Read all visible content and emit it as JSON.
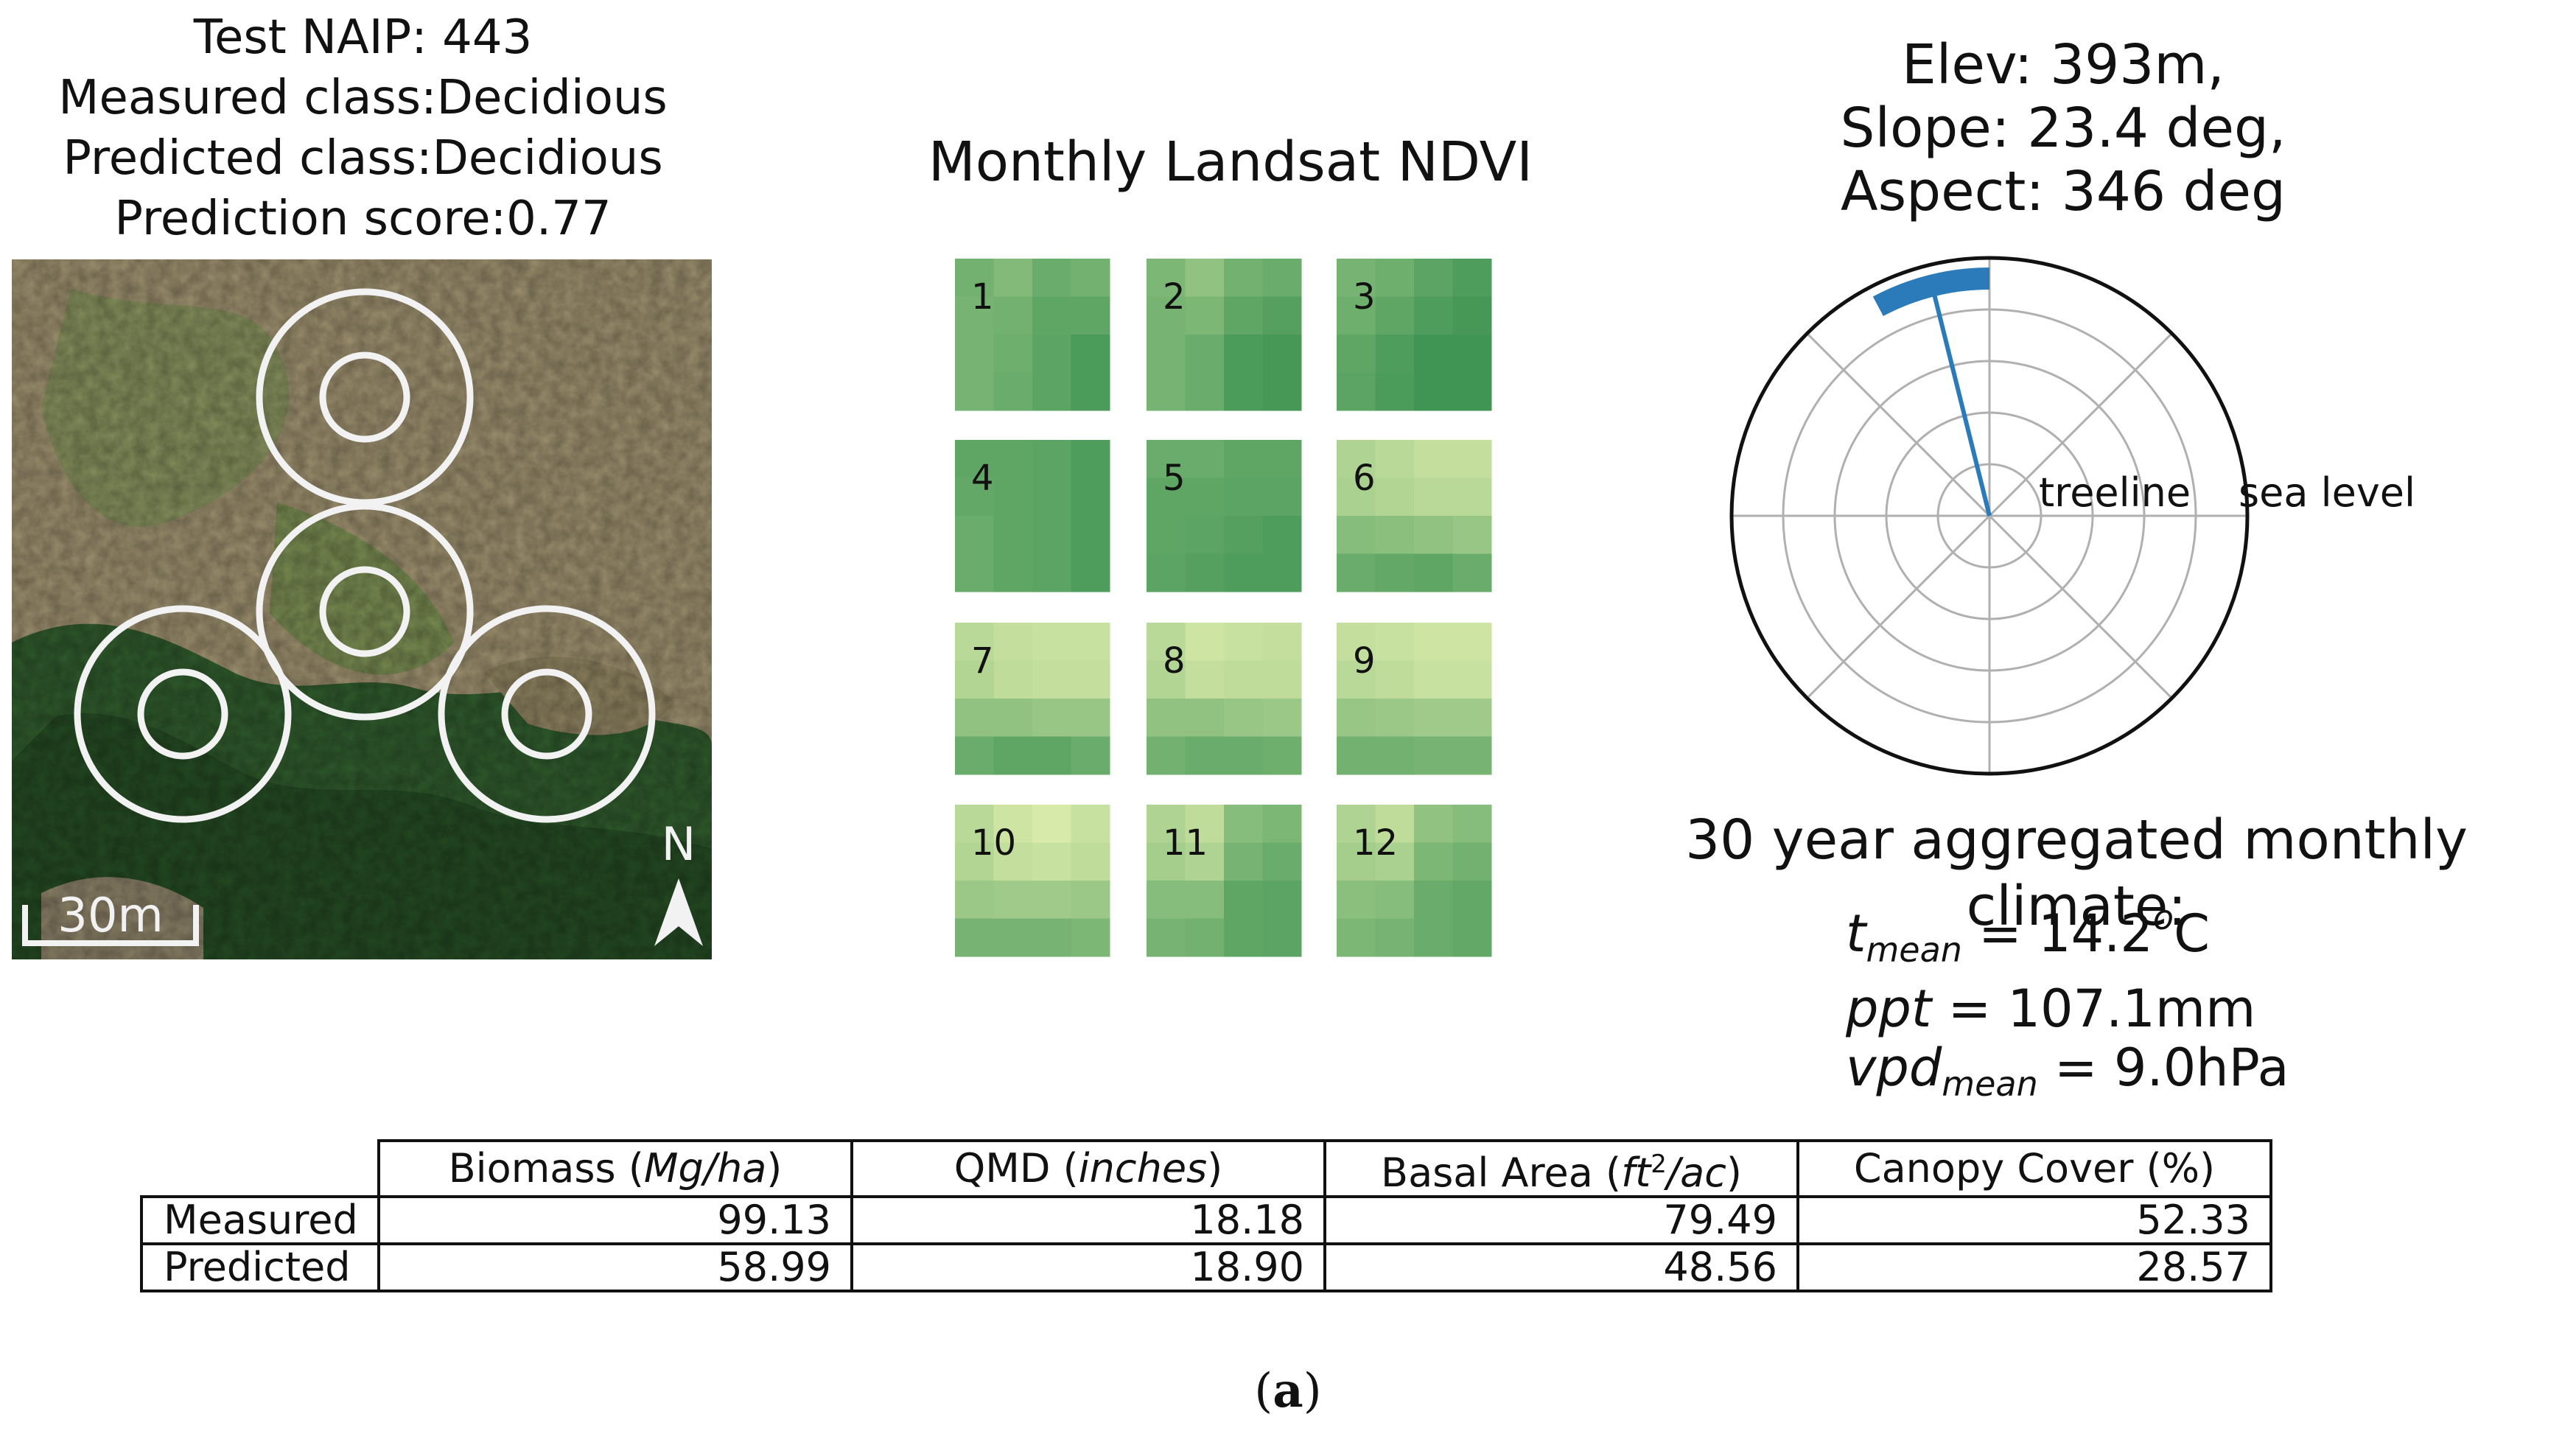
{
  "naip_panel": {
    "title_lines": [
      "Test NAIP: 443",
      "Measured class:Decidious",
      "Predicted class:Decidious",
      "Prediction score:0.77"
    ],
    "scale_label": "30m",
    "north_label": "N"
  },
  "ndvi_panel": {
    "title": "Monthly Landsat NDVI",
    "tiles": [
      {
        "label": "1",
        "cells": [
          0.4,
          0.48,
          0.35,
          0.4,
          0.42,
          0.4,
          0.3,
          0.3,
          0.42,
          0.38,
          0.28,
          0.2,
          0.42,
          0.35,
          0.28,
          0.2
        ]
      },
      {
        "label": "2",
        "cells": [
          0.45,
          0.55,
          0.4,
          0.35,
          0.42,
          0.45,
          0.3,
          0.25,
          0.42,
          0.35,
          0.2,
          0.18,
          0.42,
          0.35,
          0.2,
          0.18
        ]
      },
      {
        "label": "3",
        "cells": [
          0.42,
          0.38,
          0.28,
          0.22,
          0.38,
          0.3,
          0.22,
          0.18,
          0.3,
          0.22,
          0.15,
          0.15,
          0.28,
          0.2,
          0.15,
          0.15
        ]
      },
      {
        "label": "4",
        "cells": [
          0.3,
          0.3,
          0.28,
          0.22,
          0.32,
          0.3,
          0.28,
          0.22,
          0.35,
          0.3,
          0.28,
          0.22,
          0.35,
          0.3,
          0.28,
          0.22
        ]
      },
      {
        "label": "5",
        "cells": [
          0.35,
          0.35,
          0.3,
          0.3,
          0.3,
          0.3,
          0.28,
          0.28,
          0.3,
          0.28,
          0.25,
          0.22,
          0.28,
          0.25,
          0.22,
          0.22
        ]
      },
      {
        "label": "6",
        "cells": [
          0.7,
          0.75,
          0.8,
          0.8,
          0.68,
          0.72,
          0.75,
          0.75,
          0.5,
          0.52,
          0.55,
          0.58,
          0.35,
          0.32,
          0.3,
          0.35
        ]
      },
      {
        "label": "7",
        "cells": [
          0.75,
          0.8,
          0.82,
          0.82,
          0.72,
          0.78,
          0.8,
          0.8,
          0.55,
          0.55,
          0.58,
          0.58,
          0.35,
          0.3,
          0.3,
          0.35
        ]
      },
      {
        "label": "8",
        "cells": [
          0.75,
          0.85,
          0.82,
          0.8,
          0.72,
          0.8,
          0.78,
          0.78,
          0.55,
          0.55,
          0.58,
          0.6,
          0.4,
          0.35,
          0.35,
          0.38
        ]
      },
      {
        "label": "9",
        "cells": [
          0.8,
          0.82,
          0.85,
          0.85,
          0.75,
          0.78,
          0.82,
          0.82,
          0.58,
          0.6,
          0.62,
          0.62,
          0.4,
          0.4,
          0.42,
          0.42
        ]
      },
      {
        "label": "10",
        "cells": [
          0.75,
          0.85,
          0.9,
          0.82,
          0.72,
          0.8,
          0.82,
          0.78,
          0.6,
          0.62,
          0.62,
          0.6,
          0.42,
          0.42,
          0.42,
          0.45
        ]
      },
      {
        "label": "11",
        "cells": [
          0.7,
          0.78,
          0.5,
          0.45,
          0.65,
          0.7,
          0.42,
          0.35,
          0.5,
          0.5,
          0.3,
          0.28,
          0.42,
          0.4,
          0.3,
          0.28
        ]
      },
      {
        "label": "12",
        "cells": [
          0.7,
          0.78,
          0.55,
          0.5,
          0.65,
          0.68,
          0.45,
          0.4,
          0.52,
          0.5,
          0.35,
          0.32,
          0.45,
          0.42,
          0.35,
          0.32
        ]
      }
    ]
  },
  "topo_panel": {
    "title_lines": [
      "Elev: 393m,",
      "Slope: 23.4 deg,",
      "Aspect: 346 deg"
    ],
    "radial_labels": [
      "treeline",
      "sea level"
    ],
    "aspect_deg": 346,
    "line_color": "#2b7bba"
  },
  "climate_panel": {
    "title": "30 year aggregated monthly climate:",
    "tmean_sym": "t",
    "tmean_sub": "mean",
    "tmean_val": " = 14.2",
    "tmean_sup": "o",
    "tmean_unit": "C",
    "ppt_sym": "ppt",
    "ppt_val": " = 107.1mm",
    "vpd_sym": "vpd",
    "vpd_sub": "mean",
    "vpd_val": " = 9.0hPa"
  },
  "table": {
    "headers": [
      {
        "name": "Biomass",
        "unit": "Mg/ha"
      },
      {
        "name": "QMD",
        "unit": "inches"
      },
      {
        "name": "Basal Area",
        "unit_pre": "ft",
        "unit_sup": "2",
        "unit_post": "/ac"
      },
      {
        "name": "Canopy Cover (%)"
      }
    ],
    "rows": [
      {
        "label": "Measured",
        "values": [
          "99.13",
          "18.18",
          "79.49",
          "52.33"
        ]
      },
      {
        "label": "Predicted",
        "values": [
          "58.99",
          "18.90",
          "48.56",
          "28.57"
        ]
      }
    ]
  },
  "caption": {
    "label": "a"
  },
  "chart_data": [
    {
      "type": "heatmap",
      "title": "Monthly Landsat NDVI",
      "panels": [
        "1",
        "2",
        "3",
        "4",
        "5",
        "6",
        "7",
        "8",
        "9",
        "10",
        "11",
        "12"
      ],
      "grid": [
        4,
        4
      ]
    },
    {
      "type": "scatter",
      "projection": "polar",
      "title": "Elev: 393m, Slope: 23.4 deg, Aspect: 346 deg",
      "theta_deg": 346,
      "radial_labels": [
        "treeline",
        "sea level"
      ]
    },
    {
      "type": "table",
      "columns": [
        "Biomass (Mg/ha)",
        "QMD (inches)",
        "Basal Area (ft2/ac)",
        "Canopy Cover (%)"
      ],
      "rows": [
        {
          "name": "Measured",
          "values": [
            99.13,
            18.18,
            79.49,
            52.33
          ]
        },
        {
          "name": "Predicted",
          "values": [
            58.99,
            18.9,
            48.56,
            28.57
          ]
        }
      ]
    }
  ]
}
